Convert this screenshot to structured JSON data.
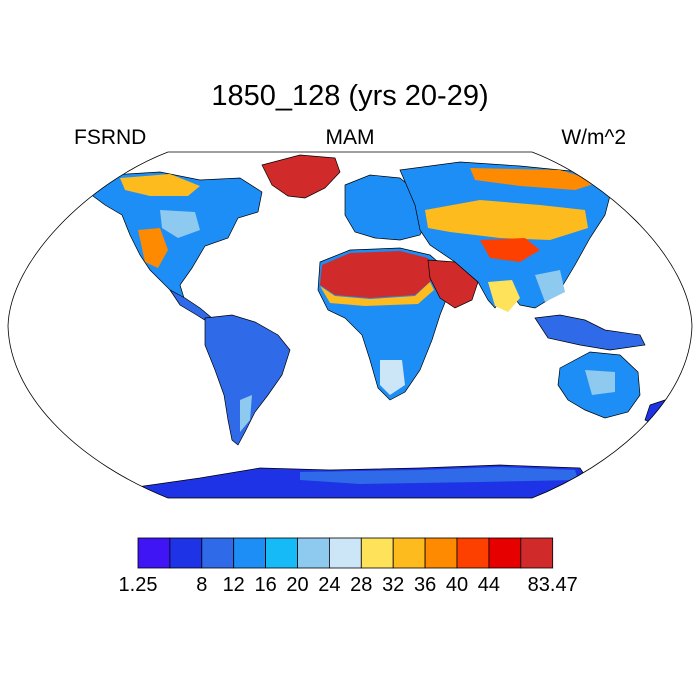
{
  "title": "1850_128 (yrs 20-29)",
  "left_label": "FSRND",
  "center_label": "MAM",
  "right_label": "W/m^2",
  "colorbar": {
    "colors": [
      "#3f14f5",
      "#1f33e6",
      "#2f6ae8",
      "#1d8ef5",
      "#15baf6",
      "#8ec9ef",
      "#cce6f7",
      "#fde25a",
      "#fdbb1d",
      "#fd8a00",
      "#fd3f00",
      "#e60000",
      "#d12a2a"
    ],
    "labels": [
      "1.25",
      "8",
      "12",
      "16",
      "20",
      "24",
      "28",
      "32",
      "36",
      "40",
      "44",
      "83.47"
    ],
    "label_positions": [
      0,
      2,
      3,
      4,
      5,
      6,
      7,
      8,
      9,
      10,
      11,
      13
    ]
  },
  "map": {
    "projection": "robinson",
    "ocean_color": "#ffffff",
    "coastline_color": "#000000"
  }
}
